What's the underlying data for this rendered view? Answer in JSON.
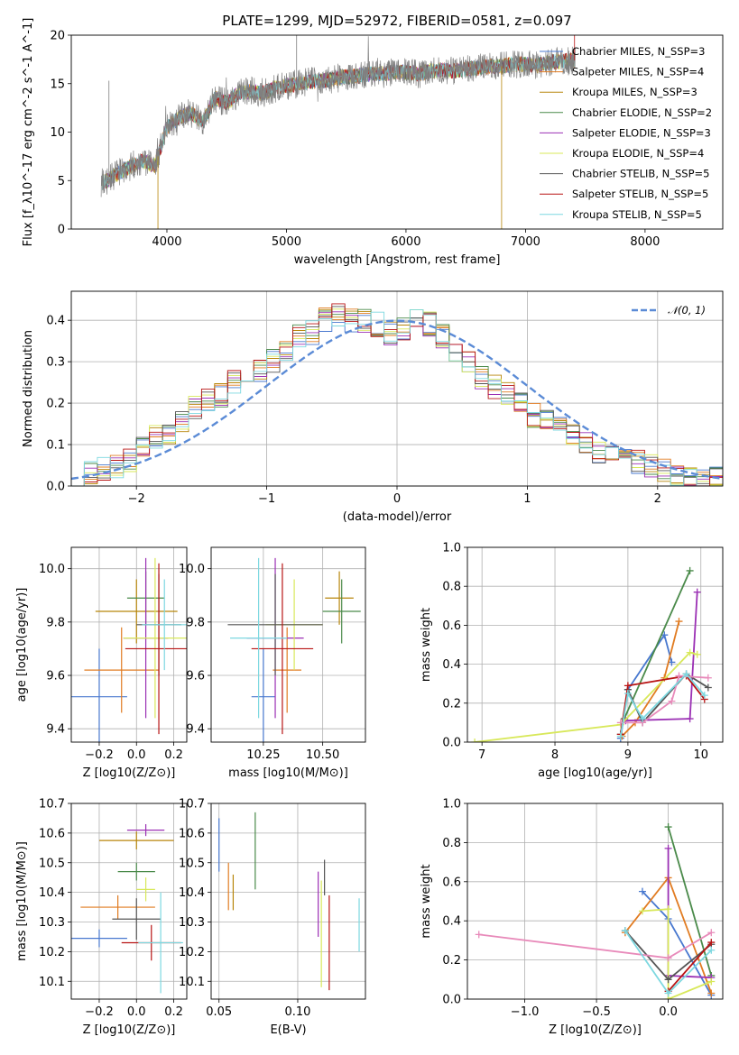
{
  "chart_data": [
    {
      "type": "line",
      "title": "PLATE=1299, MJD=52972, FIBERID=0581, z=0.097",
      "xlabel": "wavelength [Angstrom, rest frame]",
      "ylabel": "Flux [f_λ10^-17 erg cm^-2 s^-1 A^-1]",
      "xlim": [
        3200,
        8650
      ],
      "ylim": [
        0,
        20
      ],
      "xticks": [
        "4000",
        "5000",
        "6000",
        "7000",
        "8000"
      ],
      "yticks": [
        "0",
        "5",
        "10",
        "15",
        "20"
      ],
      "legend_position": "right",
      "note_spectrum": "observed spectrum (grey) spans ~3450-7420 Å rising from ~5 to ~17; model fits follow the continuum",
      "series": [
        {
          "name": "Chabrier MILES, N_SSP=3",
          "color": "#4878cf"
        },
        {
          "name": "Salpeter MILES, N_SSP=4",
          "color": "#e17c22"
        },
        {
          "name": "Kroupa MILES, N_SSP=3",
          "color": "#b8860b"
        },
        {
          "name": "Chabrier ELODIE, N_SSP=2",
          "color": "#4a8a4a"
        },
        {
          "name": "Salpeter ELODIE, N_SSP=3",
          "color": "#9b30b4"
        },
        {
          "name": "Kroupa ELODIE, N_SSP=4",
          "color": "#d8e85a"
        },
        {
          "name": "Chabrier STELIB, N_SSP=5",
          "color": "#555555"
        },
        {
          "name": "Salpeter STELIB, N_SSP=5",
          "color": "#b81414"
        },
        {
          "name": "Kroupa STELIB, N_SSP=5",
          "color": "#7dd8e0"
        }
      ],
      "spectrum": {
        "x": [
          3450,
          3500,
          3600,
          3700,
          3800,
          3900,
          4000,
          4100,
          4200,
          4300,
          4400,
          4500,
          4600,
          4700,
          4800,
          4900,
          5000,
          5100,
          5200,
          5300,
          5400,
          5500,
          5600,
          5700,
          5800,
          5900,
          6000,
          6100,
          6200,
          6300,
          6400,
          6500,
          6600,
          6700,
          6800,
          6900,
          7000,
          7100,
          7200,
          7300,
          7400
        ],
        "y": [
          4.8,
          5.0,
          5.8,
          6.5,
          7.0,
          6.5,
          10.5,
          11.5,
          12.0,
          11.0,
          13.5,
          13.0,
          14.0,
          14.2,
          14.0,
          14.5,
          14.8,
          15.0,
          15.2,
          15.3,
          15.5,
          15.7,
          15.8,
          16.0,
          16.0,
          16.2,
          16.2,
          16.0,
          16.3,
          16.4,
          16.3,
          16.5,
          16.6,
          16.8,
          16.8,
          17.0,
          17.0,
          16.9,
          17.2,
          17.3,
          17.4
        ]
      }
    },
    {
      "type": "bar",
      "xlabel": "(data-model)/error",
      "ylabel": "Normed distribution",
      "xlim": [
        -2.5,
        2.5
      ],
      "ylim": [
        0,
        0.47
      ],
      "xticks": [
        "−2",
        "−1",
        "0",
        "1",
        "2"
      ],
      "yticks": [
        "0.0",
        "0.1",
        "0.2",
        "0.3",
        "0.4"
      ],
      "legend": "𝒩(0, 1)",
      "legend_position": "top-right",
      "bin_width": 0.1,
      "histogram_envelope": {
        "x": [
          -2.45,
          -2.35,
          -2.25,
          -2.15,
          -2.05,
          -1.95,
          -1.85,
          -1.75,
          -1.65,
          -1.55,
          -1.45,
          -1.35,
          -1.25,
          -1.15,
          -1.05,
          -0.95,
          -0.85,
          -0.75,
          -0.65,
          -0.55,
          -0.45,
          -0.35,
          -0.25,
          -0.15,
          -0.05,
          0.05,
          0.15,
          0.25,
          0.35,
          0.45,
          0.55,
          0.65,
          0.75,
          0.85,
          0.95,
          1.05,
          1.15,
          1.25,
          1.35,
          1.45,
          1.55,
          1.65,
          1.75,
          1.85,
          1.95,
          2.05,
          2.15,
          2.25,
          2.35,
          2.45
        ],
        "y": [
          0.02,
          0.03,
          0.04,
          0.05,
          0.06,
          0.1,
          0.12,
          0.13,
          0.15,
          0.19,
          0.21,
          0.22,
          0.25,
          0.26,
          0.28,
          0.3,
          0.33,
          0.36,
          0.37,
          0.4,
          0.41,
          0.4,
          0.4,
          0.39,
          0.37,
          0.38,
          0.4,
          0.39,
          0.36,
          0.33,
          0.3,
          0.26,
          0.24,
          0.22,
          0.2,
          0.17,
          0.16,
          0.14,
          0.13,
          0.1,
          0.08,
          0.08,
          0.07,
          0.06,
          0.05,
          0.04,
          0.03,
          0.03,
          0.02,
          0.02
        ]
      }
    },
    {
      "type": "scatter",
      "xlabel": "Z [log10(Z/Z⊙)]",
      "ylabel": "age [log10(age/yr)]",
      "xlim": [
        -0.35,
        0.27
      ],
      "ylim": [
        9.35,
        10.08
      ],
      "xticks": [
        "−0.2",
        "0.0",
        "0.2"
      ],
      "yticks": [
        "9.4",
        "9.6",
        "9.8",
        "10.0"
      ],
      "points": [
        {
          "x": -0.2,
          "y": 9.52,
          "xerr": 0.15,
          "yerr": 0.18
        },
        {
          "x": -0.08,
          "y": 9.62,
          "xerr": 0.2,
          "yerr": 0.16
        },
        {
          "x": 0.0,
          "y": 9.84,
          "xerr": 0.22,
          "yerr": 0.12
        },
        {
          "x": 0.05,
          "y": 9.89,
          "xerr": 0.1,
          "yerr": 0.1
        },
        {
          "x": 0.05,
          "y": 9.74,
          "xerr": 0.12,
          "yerr": 0.3
        },
        {
          "x": 0.1,
          "y": 9.74,
          "xerr": 0.17,
          "yerr": 0.3
        },
        {
          "x": 0.12,
          "y": 9.79,
          "xerr": 0.12,
          "yerr": 0.19
        },
        {
          "x": 0.12,
          "y": 9.7,
          "xerr": 0.18,
          "yerr": 0.32
        },
        {
          "x": 0.15,
          "y": 9.79,
          "xerr": 0.12,
          "yerr": 0.17
        }
      ]
    },
    {
      "type": "scatter",
      "xlabel": "mass [log10(M/M⊙)]",
      "xlim": [
        10.03,
        10.68
      ],
      "ylim": [
        9.35,
        10.08
      ],
      "xticks": [
        "10.25",
        "10.50"
      ],
      "yticks": [
        "9.4",
        "9.6",
        "9.8",
        "10.0"
      ],
      "points": [
        {
          "x": 10.25,
          "y": 9.52,
          "xerr": 0.05,
          "yerr": 0.18
        },
        {
          "x": 10.35,
          "y": 9.62,
          "xerr": 0.06,
          "yerr": 0.16
        },
        {
          "x": 10.57,
          "y": 9.89,
          "xerr": 0.06,
          "yerr": 0.1
        },
        {
          "x": 10.58,
          "y": 9.84,
          "xerr": 0.08,
          "yerr": 0.12
        },
        {
          "x": 10.3,
          "y": 9.74,
          "xerr": 0.12,
          "yerr": 0.3
        },
        {
          "x": 10.38,
          "y": 9.79,
          "xerr": 0.12,
          "yerr": 0.17
        },
        {
          "x": 10.3,
          "y": 9.79,
          "xerr": 0.2,
          "yerr": 0.19
        },
        {
          "x": 10.33,
          "y": 9.7,
          "xerr": 0.13,
          "yerr": 0.32
        },
        {
          "x": 10.23,
          "y": 9.74,
          "xerr": 0.12,
          "yerr": 0.3
        }
      ]
    },
    {
      "type": "line",
      "xlabel": "age [log10(age/yr)]",
      "ylabel": "mass weight",
      "xlim": [
        6.8,
        10.3
      ],
      "ylim": [
        0,
        1
      ],
      "xticks": [
        "7",
        "8",
        "9",
        "10"
      ],
      "yticks": [
        "0.0",
        "0.2",
        "0.4",
        "0.6",
        "0.8",
        "1.0"
      ],
      "series": [
        {
          "color": "#4878cf",
          "x": [
            8.9,
            9.0,
            9.5,
            9.6
          ],
          "y": [
            0.02,
            0.27,
            0.55,
            0.41
          ]
        },
        {
          "color": "#e17c22",
          "x": [
            8.92,
            9.1,
            9.5,
            9.7
          ],
          "y": [
            0.03,
            0.1,
            0.33,
            0.62
          ]
        },
        {
          "color": "#4a8a4a",
          "x": [
            8.95,
            9.85
          ],
          "y": [
            0.12,
            0.88
          ]
        },
        {
          "color": "#9b30b4",
          "x": [
            8.97,
            9.85,
            9.95
          ],
          "y": [
            0.11,
            0.12,
            0.77
          ]
        },
        {
          "color": "#d8e85a",
          "x": [
            6.9,
            8.9,
            9.85,
            9.95
          ],
          "y": [
            0.0,
            0.09,
            0.46,
            0.45
          ]
        },
        {
          "color": "#555555",
          "x": [
            8.9,
            9.0,
            9.2,
            9.8,
            10.1
          ],
          "y": [
            0.04,
            0.27,
            0.1,
            0.35,
            0.28
          ]
        },
        {
          "color": "#b81414",
          "x": [
            8.9,
            9.0,
            9.8,
            10.05
          ],
          "y": [
            0.04,
            0.29,
            0.34,
            0.22
          ]
        },
        {
          "color": "#e88aba",
          "x": [
            8.9,
            9.2,
            9.6,
            9.7,
            10.1
          ],
          "y": [
            0.1,
            0.1,
            0.21,
            0.34,
            0.33
          ]
        },
        {
          "color": "#7dd8e0",
          "x": [
            8.9,
            9.0,
            9.2,
            9.8,
            10.05
          ],
          "y": [
            0.03,
            0.25,
            0.12,
            0.35,
            0.24
          ]
        }
      ]
    },
    {
      "type": "scatter",
      "xlabel": "Z [log10(Z/Z⊙)]",
      "ylabel": "mass [log10(M/M⊙)]",
      "xlim": [
        -0.35,
        0.27
      ],
      "ylim": [
        10.04,
        10.7
      ],
      "xticks": [
        "−0.2",
        "0.0",
        "0.2"
      ],
      "yticks": [
        "10.1",
        "10.2",
        "10.3",
        "10.4",
        "10.5",
        "10.6",
        "10.7"
      ],
      "points": [
        {
          "x": -0.2,
          "y": 10.245,
          "xerr": 0.15,
          "yerr": 0.03
        },
        {
          "x": -0.1,
          "y": 10.35,
          "xerr": 0.2,
          "yerr": 0.04
        },
        {
          "x": 0.0,
          "y": 10.575,
          "xerr": 0.2,
          "yerr": 0.03
        },
        {
          "x": 0.0,
          "y": 10.47,
          "xerr": 0.1,
          "yerr": 0.03
        },
        {
          "x": 0.05,
          "y": 10.61,
          "xerr": 0.1,
          "yerr": 0.02
        },
        {
          "x": 0.05,
          "y": 10.41,
          "xerr": 0.05,
          "yerr": 0.04
        },
        {
          "x": 0.0,
          "y": 10.31,
          "xerr": 0.13,
          "yerr": 0.07
        },
        {
          "x": 0.08,
          "y": 10.23,
          "xerr": 0.16,
          "yerr": 0.06
        },
        {
          "x": 0.13,
          "y": 10.23,
          "xerr": 0.12,
          "yerr": 0.17
        }
      ]
    },
    {
      "type": "scatter",
      "xlabel": "E(B-V)",
      "xlim": [
        0.045,
        0.143
      ],
      "ylim": [
        10.04,
        10.7
      ],
      "xticks": [
        "0.05",
        "0.10"
      ],
      "yticks": [
        "10.1",
        "10.2",
        "10.3",
        "10.4",
        "10.5",
        "10.6",
        "10.7"
      ],
      "points": [
        {
          "x": 0.05,
          "y": 10.56,
          "yerr": 0.09
        },
        {
          "x": 0.056,
          "y": 10.42,
          "yerr": 0.08
        },
        {
          "x": 0.059,
          "y": 10.4,
          "yerr": 0.06
        },
        {
          "x": 0.073,
          "y": 10.54,
          "yerr": 0.13
        },
        {
          "x": 0.113,
          "y": 10.36,
          "yerr": 0.11
        },
        {
          "x": 0.115,
          "y": 10.26,
          "yerr": 0.18
        },
        {
          "x": 0.117,
          "y": 10.45,
          "yerr": 0.06
        },
        {
          "x": 0.12,
          "y": 10.23,
          "yerr": 0.16
        },
        {
          "x": 0.139,
          "y": 10.29,
          "yerr": 0.09
        }
      ]
    },
    {
      "type": "line",
      "xlabel": "Z [log10(Z/Z⊙)]",
      "ylabel": "mass weight",
      "xlim": [
        -1.4,
        0.38
      ],
      "ylim": [
        0,
        1
      ],
      "xticks": [
        "−1.0",
        "−0.5",
        "0.0"
      ],
      "yticks": [
        "0.0",
        "0.2",
        "0.4",
        "0.6",
        "0.8",
        "1.0"
      ],
      "series": [
        {
          "color": "#4878cf",
          "x": [
            -0.18,
            0.0,
            0.3
          ],
          "y": [
            0.55,
            0.41,
            0.02
          ]
        },
        {
          "color": "#e17c22",
          "x": [
            -0.3,
            0.0,
            0.3
          ],
          "y": [
            0.34,
            0.62,
            0.03
          ]
        },
        {
          "color": "#4a8a4a",
          "x": [
            0.0,
            0.3
          ],
          "y": [
            0.88,
            0.12
          ]
        },
        {
          "color": "#9b30b4",
          "x": [
            0.0,
            0.0,
            0.3
          ],
          "y": [
            0.77,
            0.12,
            0.11
          ]
        },
        {
          "color": "#d8e85a",
          "x": [
            -0.18,
            0.0,
            0.0,
            0.3
          ],
          "y": [
            0.45,
            0.46,
            0.0,
            0.09
          ]
        },
        {
          "color": "#555555",
          "x": [
            -0.3,
            0.0,
            0.3
          ],
          "y": [
            0.35,
            0.1,
            0.28
          ]
        },
        {
          "color": "#b81414",
          "x": [
            0.0,
            0.3
          ],
          "y": [
            0.04,
            0.29
          ]
        },
        {
          "color": "#e88aba",
          "x": [
            -1.32,
            0.0,
            0.3
          ],
          "y": [
            0.33,
            0.21,
            0.34
          ]
        },
        {
          "color": "#7dd8e0",
          "x": [
            -0.3,
            0.0,
            0.3
          ],
          "y": [
            0.35,
            0.03,
            0.25
          ]
        }
      ]
    }
  ]
}
